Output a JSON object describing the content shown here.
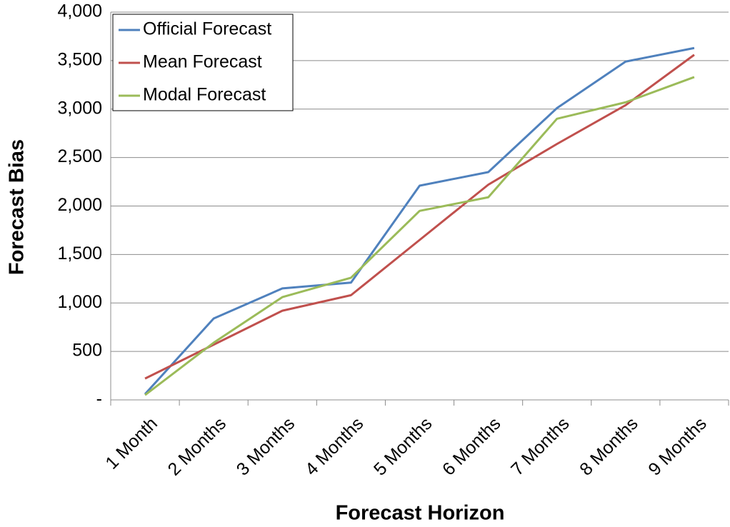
{
  "chart_data": {
    "type": "line",
    "x_label": "Forecast Horizon",
    "y_label": "Forecast Bias",
    "categories": [
      "1 Month",
      "2 Months",
      "3 Months",
      "4 Months",
      "5 Months",
      "6 Months",
      "7 Months",
      "8 Months",
      "9 Months"
    ],
    "series": [
      {
        "name": "Official Forecast",
        "color": "#4f81bd",
        "values": [
          60,
          840,
          1150,
          1210,
          2210,
          2350,
          3010,
          3490,
          3630
        ]
      },
      {
        "name": "Mean Forecast",
        "color": "#c0504d",
        "values": [
          220,
          570,
          920,
          1080,
          1650,
          2220,
          2640,
          3040,
          3560
        ]
      },
      {
        "name": "Modal Forecast",
        "color": "#9bbb59",
        "values": [
          50,
          590,
          1060,
          1260,
          1950,
          2090,
          2900,
          3070,
          3330
        ]
      }
    ],
    "ylim": [
      0,
      4000
    ],
    "yticks": [
      {
        "value": 0,
        "label": "-"
      },
      500,
      {
        "value": 1000,
        "label": "1,000"
      },
      {
        "value": 1500,
        "label": "1,500"
      },
      {
        "value": 2000,
        "label": "2,000"
      },
      {
        "value": 2500,
        "label": "2,500"
      },
      {
        "value": 3000,
        "label": "3,000"
      },
      {
        "value": 3500,
        "label": "3,500"
      },
      {
        "value": 4000,
        "label": "4,000"
      }
    ],
    "grid": true,
    "legend": "upper left"
  }
}
